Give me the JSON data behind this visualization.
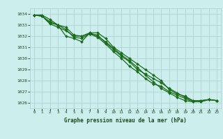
{
  "title": "Graphe pression niveau de la mer (hPa)",
  "x": [
    0,
    1,
    2,
    3,
    4,
    5,
    6,
    7,
    8,
    9,
    10,
    11,
    12,
    13,
    14,
    15,
    16,
    17,
    18,
    19,
    20,
    21,
    22,
    23
  ],
  "series": [
    [
      1033.9,
      1033.9,
      1033.5,
      1033.0,
      1032.0,
      1031.8,
      1031.5,
      1032.3,
      1032.3,
      1031.8,
      1031.0,
      1030.5,
      1030.0,
      1029.5,
      1029.0,
      1028.5,
      1028.0,
      1027.2,
      1026.8,
      1026.6,
      1026.2,
      1026.2,
      1026.3,
      1026.2
    ],
    [
      1033.9,
      1033.8,
      1033.3,
      1033.0,
      1032.6,
      1031.9,
      1031.8,
      1032.2,
      1032.1,
      1031.4,
      1030.8,
      1030.2,
      1029.7,
      1029.0,
      1028.6,
      1028.2,
      1027.8,
      1027.3,
      1026.9,
      1026.5,
      1026.2,
      1026.2,
      1026.3,
      1026.2
    ],
    [
      1033.9,
      1033.8,
      1033.2,
      1033.0,
      1032.8,
      1032.1,
      1032.0,
      1032.2,
      1031.9,
      1031.3,
      1030.6,
      1030.0,
      1029.3,
      1028.8,
      1028.2,
      1027.7,
      1027.5,
      1027.0,
      1026.7,
      1026.4,
      1026.1,
      1026.1,
      1026.3,
      1026.2
    ],
    [
      1033.9,
      1033.8,
      1033.1,
      1032.8,
      1032.5,
      1032.0,
      1032.0,
      1032.3,
      1032.0,
      1031.5,
      1030.9,
      1030.3,
      1029.8,
      1029.2,
      1028.5,
      1027.9,
      1027.3,
      1026.9,
      1026.5,
      1026.2,
      1026.1,
      1026.1,
      1026.3,
      1026.2
    ]
  ],
  "ylim": [
    1025.5,
    1034.5
  ],
  "yticks": [
    1026,
    1027,
    1028,
    1029,
    1030,
    1031,
    1032,
    1033,
    1034
  ],
  "line_color": "#1a6b1a",
  "marker_color": "#1a6b1a",
  "bg_color": "#cceeed",
  "grid_color": "#aacfcf",
  "tick_label_color": "#1a4a1a",
  "xlabel_color": "#1a4a1a",
  "figsize": [
    3.2,
    2.0
  ],
  "dpi": 100
}
